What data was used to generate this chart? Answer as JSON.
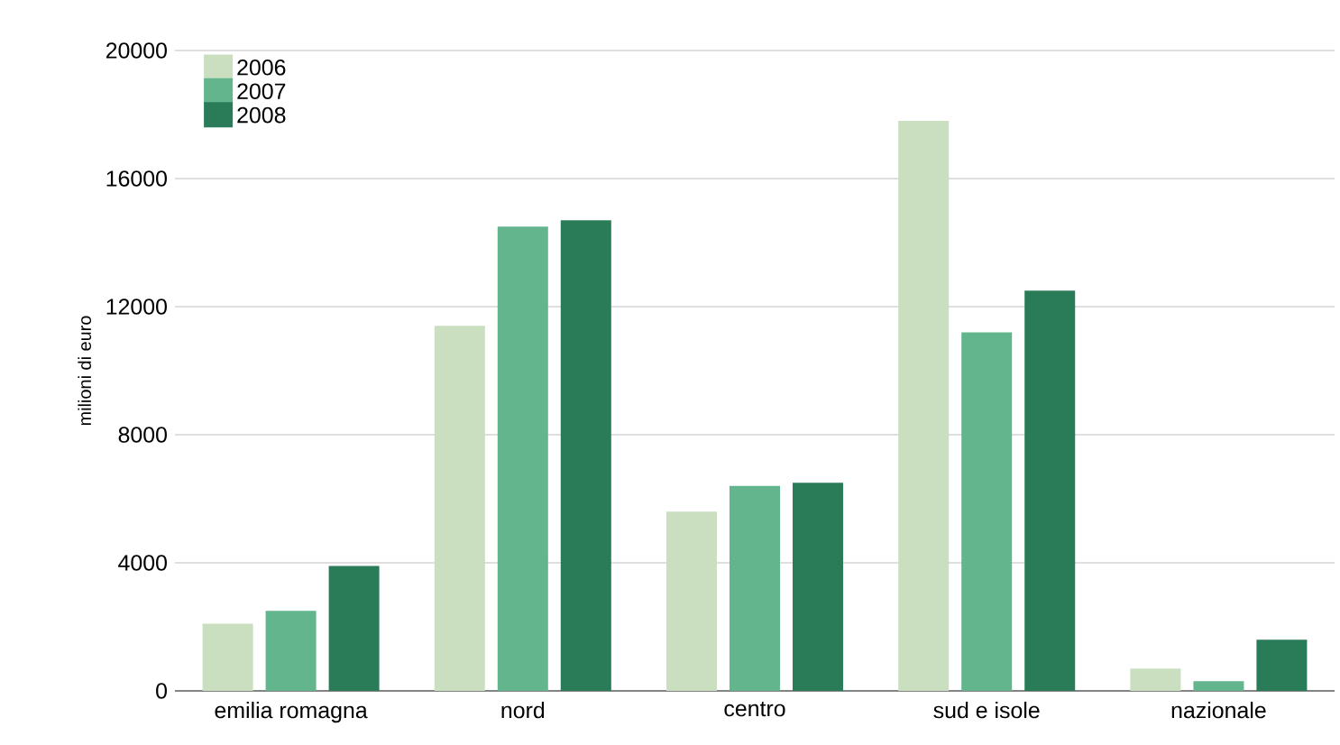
{
  "chart_data": {
    "type": "bar",
    "ylabel": "milioni di euro",
    "categories": [
      "emilia romagna",
      "nord",
      "centro",
      "sud e isole",
      "nazionale"
    ],
    "series": [
      {
        "name": "2006",
        "color": "#c9dfc0",
        "values": [
          2100,
          11400,
          5600,
          17800,
          700
        ]
      },
      {
        "name": "2007",
        "color": "#63b58e",
        "values": [
          2500,
          14500,
          6400,
          11200,
          300
        ]
      },
      {
        "name": "2008",
        "color": "#2a7b57",
        "values": [
          3900,
          14700,
          6500,
          12500,
          1600
        ]
      }
    ],
    "ylim": [
      0,
      20000
    ],
    "yticks": [
      0,
      4000,
      8000,
      12000,
      16000,
      20000
    ],
    "grid": "y",
    "legend": "top left"
  }
}
